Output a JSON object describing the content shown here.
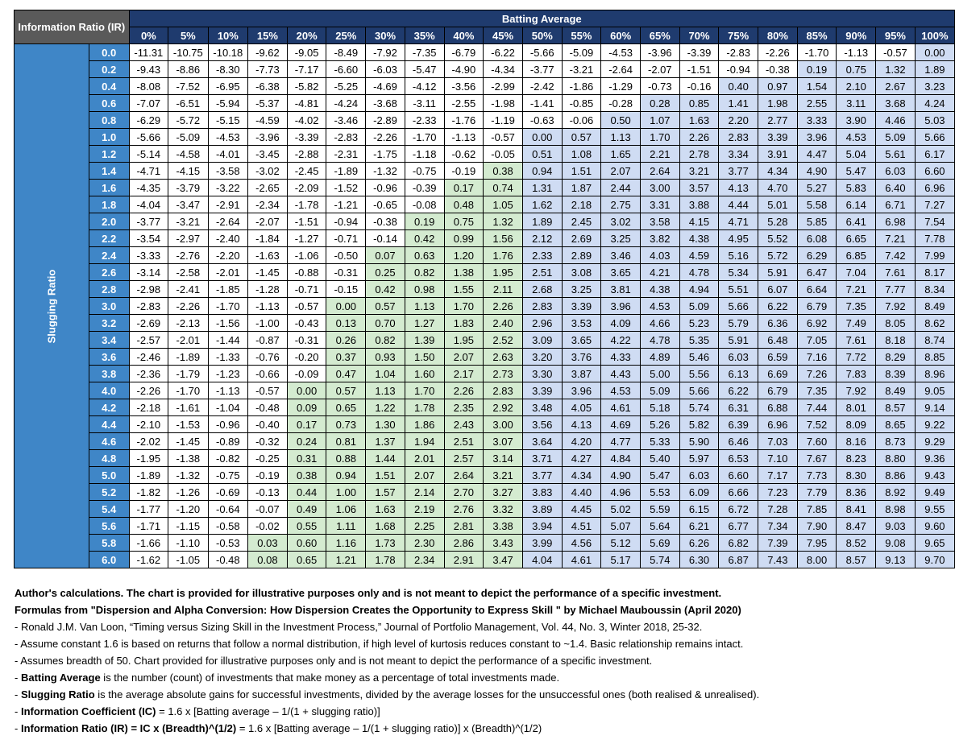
{
  "chart_data": {
    "type": "table",
    "title": "Batting Average",
    "corner_label": "Information Ratio (IR)",
    "row_axis_label": "Slugging Ratio",
    "column_headers": [
      "0%",
      "5%",
      "10%",
      "15%",
      "20%",
      "25%",
      "30%",
      "35%",
      "40%",
      "45%",
      "50%",
      "55%",
      "60%",
      "65%",
      "70%",
      "75%",
      "80%",
      "85%",
      "90%",
      "95%",
      "100%"
    ],
    "row_headers": [
      "0.0",
      "0.2",
      "0.4",
      "0.6",
      "0.8",
      "1.0",
      "1.2",
      "1.4",
      "1.6",
      "1.8",
      "2.0",
      "2.2",
      "2.4",
      "2.6",
      "2.8",
      "3.0",
      "3.2",
      "3.4",
      "3.6",
      "3.8",
      "4.0",
      "4.2",
      "4.4",
      "4.6",
      "4.8",
      "5.0",
      "5.2",
      "5.4",
      "5.6",
      "5.8",
      "6.0"
    ],
    "rows": [
      [
        "-11.31",
        "-10.75",
        "-10.18",
        "-9.62",
        "-9.05",
        "-8.49",
        "-7.92",
        "-7.35",
        "-6.79",
        "-6.22",
        "-5.66",
        "-5.09",
        "-4.53",
        "-3.96",
        "-3.39",
        "-2.83",
        "-2.26",
        "-1.70",
        "-1.13",
        "-0.57",
        "0.00"
      ],
      [
        "-9.43",
        "-8.86",
        "-8.30",
        "-7.73",
        "-7.17",
        "-6.60",
        "-6.03",
        "-5.47",
        "-4.90",
        "-4.34",
        "-3.77",
        "-3.21",
        "-2.64",
        "-2.07",
        "-1.51",
        "-0.94",
        "-0.38",
        "0.19",
        "0.75",
        "1.32",
        "1.89"
      ],
      [
        "-8.08",
        "-7.52",
        "-6.95",
        "-6.38",
        "-5.82",
        "-5.25",
        "-4.69",
        "-4.12",
        "-3.56",
        "-2.99",
        "-2.42",
        "-1.86",
        "-1.29",
        "-0.73",
        "-0.16",
        "0.40",
        "0.97",
        "1.54",
        "2.10",
        "2.67",
        "3.23"
      ],
      [
        "-7.07",
        "-6.51",
        "-5.94",
        "-5.37",
        "-4.81",
        "-4.24",
        "-3.68",
        "-3.11",
        "-2.55",
        "-1.98",
        "-1.41",
        "-0.85",
        "-0.28",
        "0.28",
        "0.85",
        "1.41",
        "1.98",
        "2.55",
        "3.11",
        "3.68",
        "4.24"
      ],
      [
        "-6.29",
        "-5.72",
        "-5.15",
        "-4.59",
        "-4.02",
        "-3.46",
        "-2.89",
        "-2.33",
        "-1.76",
        "-1.19",
        "-0.63",
        "-0.06",
        "0.50",
        "1.07",
        "1.63",
        "2.20",
        "2.77",
        "3.33",
        "3.90",
        "4.46",
        "5.03"
      ],
      [
        "-5.66",
        "-5.09",
        "-4.53",
        "-3.96",
        "-3.39",
        "-2.83",
        "-2.26",
        "-1.70",
        "-1.13",
        "-0.57",
        "0.00",
        "0.57",
        "1.13",
        "1.70",
        "2.26",
        "2.83",
        "3.39",
        "3.96",
        "4.53",
        "5.09",
        "5.66"
      ],
      [
        "-5.14",
        "-4.58",
        "-4.01",
        "-3.45",
        "-2.88",
        "-2.31",
        "-1.75",
        "-1.18",
        "-0.62",
        "-0.05",
        "0.51",
        "1.08",
        "1.65",
        "2.21",
        "2.78",
        "3.34",
        "3.91",
        "4.47",
        "5.04",
        "5.61",
        "6.17"
      ],
      [
        "-4.71",
        "-4.15",
        "-3.58",
        "-3.02",
        "-2.45",
        "-1.89",
        "-1.32",
        "-0.75",
        "-0.19",
        "0.38",
        "0.94",
        "1.51",
        "2.07",
        "2.64",
        "3.21",
        "3.77",
        "4.34",
        "4.90",
        "5.47",
        "6.03",
        "6.60"
      ],
      [
        "-4.35",
        "-3.79",
        "-3.22",
        "-2.65",
        "-2.09",
        "-1.52",
        "-0.96",
        "-0.39",
        "0.17",
        "0.74",
        "1.31",
        "1.87",
        "2.44",
        "3.00",
        "3.57",
        "4.13",
        "4.70",
        "5.27",
        "5.83",
        "6.40",
        "6.96"
      ],
      [
        "-4.04",
        "-3.47",
        "-2.91",
        "-2.34",
        "-1.78",
        "-1.21",
        "-0.65",
        "-0.08",
        "0.48",
        "1.05",
        "1.62",
        "2.18",
        "2.75",
        "3.31",
        "3.88",
        "4.44",
        "5.01",
        "5.58",
        "6.14",
        "6.71",
        "7.27"
      ],
      [
        "-3.77",
        "-3.21",
        "-2.64",
        "-2.07",
        "-1.51",
        "-0.94",
        "-0.38",
        "0.19",
        "0.75",
        "1.32",
        "1.89",
        "2.45",
        "3.02",
        "3.58",
        "4.15",
        "4.71",
        "5.28",
        "5.85",
        "6.41",
        "6.98",
        "7.54"
      ],
      [
        "-3.54",
        "-2.97",
        "-2.40",
        "-1.84",
        "-1.27",
        "-0.71",
        "-0.14",
        "0.42",
        "0.99",
        "1.56",
        "2.12",
        "2.69",
        "3.25",
        "3.82",
        "4.38",
        "4.95",
        "5.52",
        "6.08",
        "6.65",
        "7.21",
        "7.78"
      ],
      [
        "-3.33",
        "-2.76",
        "-2.20",
        "-1.63",
        "-1.06",
        "-0.50",
        "0.07",
        "0.63",
        "1.20",
        "1.76",
        "2.33",
        "2.89",
        "3.46",
        "4.03",
        "4.59",
        "5.16",
        "5.72",
        "6.29",
        "6.85",
        "7.42",
        "7.99"
      ],
      [
        "-3.14",
        "-2.58",
        "-2.01",
        "-1.45",
        "-0.88",
        "-0.31",
        "0.25",
        "0.82",
        "1.38",
        "1.95",
        "2.51",
        "3.08",
        "3.65",
        "4.21",
        "4.78",
        "5.34",
        "5.91",
        "6.47",
        "7.04",
        "7.61",
        "8.17"
      ],
      [
        "-2.98",
        "-2.41",
        "-1.85",
        "-1.28",
        "-0.71",
        "-0.15",
        "0.42",
        "0.98",
        "1.55",
        "2.11",
        "2.68",
        "3.25",
        "3.81",
        "4.38",
        "4.94",
        "5.51",
        "6.07",
        "6.64",
        "7.21",
        "7.77",
        "8.34"
      ],
      [
        "-2.83",
        "-2.26",
        "-1.70",
        "-1.13",
        "-0.57",
        "0.00",
        "0.57",
        "1.13",
        "1.70",
        "2.26",
        "2.83",
        "3.39",
        "3.96",
        "4.53",
        "5.09",
        "5.66",
        "6.22",
        "6.79",
        "7.35",
        "7.92",
        "8.49"
      ],
      [
        "-2.69",
        "-2.13",
        "-1.56",
        "-1.00",
        "-0.43",
        "0.13",
        "0.70",
        "1.27",
        "1.83",
        "2.40",
        "2.96",
        "3.53",
        "4.09",
        "4.66",
        "5.23",
        "5.79",
        "6.36",
        "6.92",
        "7.49",
        "8.05",
        "8.62"
      ],
      [
        "-2.57",
        "-2.01",
        "-1.44",
        "-0.87",
        "-0.31",
        "0.26",
        "0.82",
        "1.39",
        "1.95",
        "2.52",
        "3.09",
        "3.65",
        "4.22",
        "4.78",
        "5.35",
        "5.91",
        "6.48",
        "7.05",
        "7.61",
        "8.18",
        "8.74"
      ],
      [
        "-2.46",
        "-1.89",
        "-1.33",
        "-0.76",
        "-0.20",
        "0.37",
        "0.93",
        "1.50",
        "2.07",
        "2.63",
        "3.20",
        "3.76",
        "4.33",
        "4.89",
        "5.46",
        "6.03",
        "6.59",
        "7.16",
        "7.72",
        "8.29",
        "8.85"
      ],
      [
        "-2.36",
        "-1.79",
        "-1.23",
        "-0.66",
        "-0.09",
        "0.47",
        "1.04",
        "1.60",
        "2.17",
        "2.73",
        "3.30",
        "3.87",
        "4.43",
        "5.00",
        "5.56",
        "6.13",
        "6.69",
        "7.26",
        "7.83",
        "8.39",
        "8.96"
      ],
      [
        "-2.26",
        "-1.70",
        "-1.13",
        "-0.57",
        "0.00",
        "0.57",
        "1.13",
        "1.70",
        "2.26",
        "2.83",
        "3.39",
        "3.96",
        "4.53",
        "5.09",
        "5.66",
        "6.22",
        "6.79",
        "7.35",
        "7.92",
        "8.49",
        "9.05"
      ],
      [
        "-2.18",
        "-1.61",
        "-1.04",
        "-0.48",
        "0.09",
        "0.65",
        "1.22",
        "1.78",
        "2.35",
        "2.92",
        "3.48",
        "4.05",
        "4.61",
        "5.18",
        "5.74",
        "6.31",
        "6.88",
        "7.44",
        "8.01",
        "8.57",
        "9.14"
      ],
      [
        "-2.10",
        "-1.53",
        "-0.96",
        "-0.40",
        "0.17",
        "0.73",
        "1.30",
        "1.86",
        "2.43",
        "3.00",
        "3.56",
        "4.13",
        "4.69",
        "5.26",
        "5.82",
        "6.39",
        "6.96",
        "7.52",
        "8.09",
        "8.65",
        "9.22"
      ],
      [
        "-2.02",
        "-1.45",
        "-0.89",
        "-0.32",
        "0.24",
        "0.81",
        "1.37",
        "1.94",
        "2.51",
        "3.07",
        "3.64",
        "4.20",
        "4.77",
        "5.33",
        "5.90",
        "6.46",
        "7.03",
        "7.60",
        "8.16",
        "8.73",
        "9.29"
      ],
      [
        "-1.95",
        "-1.38",
        "-0.82",
        "-0.25",
        "0.31",
        "0.88",
        "1.44",
        "2.01",
        "2.57",
        "3.14",
        "3.71",
        "4.27",
        "4.84",
        "5.40",
        "5.97",
        "6.53",
        "7.10",
        "7.67",
        "8.23",
        "8.80",
        "9.36"
      ],
      [
        "-1.89",
        "-1.32",
        "-0.75",
        "-0.19",
        "0.38",
        "0.94",
        "1.51",
        "2.07",
        "2.64",
        "3.21",
        "3.77",
        "4.34",
        "4.90",
        "5.47",
        "6.03",
        "6.60",
        "7.17",
        "7.73",
        "8.30",
        "8.86",
        "9.43"
      ],
      [
        "-1.82",
        "-1.26",
        "-0.69",
        "-0.13",
        "0.44",
        "1.00",
        "1.57",
        "2.14",
        "2.70",
        "3.27",
        "3.83",
        "4.40",
        "4.96",
        "5.53",
        "6.09",
        "6.66",
        "7.23",
        "7.79",
        "8.36",
        "8.92",
        "9.49"
      ],
      [
        "-1.77",
        "-1.20",
        "-0.64",
        "-0.07",
        "0.49",
        "1.06",
        "1.63",
        "2.19",
        "2.76",
        "3.32",
        "3.89",
        "4.45",
        "5.02",
        "5.59",
        "6.15",
        "6.72",
        "7.28",
        "7.85",
        "8.41",
        "8.98",
        "9.55"
      ],
      [
        "-1.71",
        "-1.15",
        "-0.58",
        "-0.02",
        "0.55",
        "1.11",
        "1.68",
        "2.25",
        "2.81",
        "3.38",
        "3.94",
        "4.51",
        "5.07",
        "5.64",
        "6.21",
        "6.77",
        "7.34",
        "7.90",
        "8.47",
        "9.03",
        "9.60"
      ],
      [
        "-1.66",
        "-1.10",
        "-0.53",
        "0.03",
        "0.60",
        "1.16",
        "1.73",
        "2.30",
        "2.86",
        "3.43",
        "3.99",
        "4.56",
        "5.12",
        "5.69",
        "6.26",
        "6.82",
        "7.39",
        "7.95",
        "8.52",
        "9.08",
        "9.65"
      ],
      [
        "-1.62",
        "-1.05",
        "-0.48",
        "0.08",
        "0.65",
        "1.21",
        "1.78",
        "2.34",
        "2.91",
        "3.47",
        "4.04",
        "4.61",
        "5.17",
        "5.74",
        "6.30",
        "6.87",
        "7.43",
        "8.00",
        "8.57",
        "9.13",
        "9.70"
      ]
    ],
    "colors": {
      "header_bg": "#1f3b6e",
      "corner_bg": "#5a5a5a",
      "row_header_bg": "#3f86c7",
      "positive_below_50": "#d4ebd0",
      "positive_from_50": "#cfdcf3",
      "negative": "#ffffff"
    }
  },
  "notes": {
    "line1": "Author's calculations. The chart is provided for illustrative purposes only and is not meant to depict the performance of a specific investment.",
    "line2": "Formulas from \"Dispersion and Alpha Conversion: How Dispersion Creates the Opportunity to Express Skill \" by Michael Mauboussin (April 2020)",
    "line3": "- Ronald J.M. Van Loon, “Timing versus Sizing Skill in the Investment Process,” Journal of Portfolio Management, Vol. 44, No. 3, Winter 2018, 25-32.",
    "line4": "- Assume constant 1.6 is based on returns that follow a normal distribution, if high level of kurtosis reduces constant to ~1.4. Basic relationship remains intact.",
    "line5": "- Assumes breadth of 50. Chart provided for illustrative purposes only and is not meant to depict the performance of a specific investment.",
    "line6_term": "Batting Average",
    "line6_rest": " is the number (count) of investments that make money as a percentage of total investments made.",
    "line7_term": "Slugging Ratio",
    "line7_rest": " is the average absolute gains for successful investments, divided by the average losses for the unsuccessful ones (both realised & unrealised).",
    "line8_term": "Information Coefficient (IC)",
    "line8_rest": " = 1.6 x [Batting average – 1/(1 + slugging ratio)]",
    "line9_term": "Information Ratio (IR) = IC x (Breadth)^(1/2)",
    "line9_rest": " = 1.6 x [Batting average – 1/(1 + slugging ratio)] x (Breadth)^(1/2)",
    "dash": "- "
  }
}
